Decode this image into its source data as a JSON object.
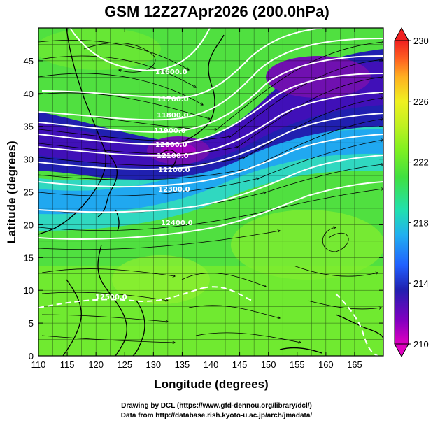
{
  "title": "GSM 12Z27Apr2026 (200.0hPa)",
  "xlabel": "Longitude (degrees)",
  "ylabel": "Latitude (degrees)",
  "credits": [
    "Drawing by DCL (https://www.gfd-dennou.org/library/dcl/)",
    "Data from http://database.rish.kyoto-u.ac.jp/arch/jmadata/"
  ],
  "map": {
    "lon_range": [
      110,
      170
    ],
    "lat_range": [
      0,
      50
    ],
    "lon_ticks": [
      110,
      115,
      120,
      125,
      130,
      135,
      140,
      145,
      150,
      155,
      160,
      165
    ],
    "lat_ticks": [
      0,
      5,
      10,
      15,
      20,
      25,
      30,
      35,
      40,
      45
    ],
    "colorbar": {
      "min": 210,
      "max": 230,
      "tick_labels": [
        "210",
        "214",
        "218",
        "222",
        "226",
        "230"
      ],
      "colors": [
        "#e000c0",
        "#8000c0",
        "#2020b0",
        "#2060ff",
        "#20b0f0",
        "#20e0b0",
        "#40e040",
        "#80f020",
        "#c0f020",
        "#f0f020",
        "#ffb020",
        "#ff6020",
        "#f02020"
      ]
    },
    "contour_labels": [
      "11600.0",
      "11700.0",
      "11800.0",
      "11900.0",
      "12000.0",
      "12100.0",
      "12200.0",
      "12300.0",
      "12400.0",
      "12500.0"
    ]
  }
}
